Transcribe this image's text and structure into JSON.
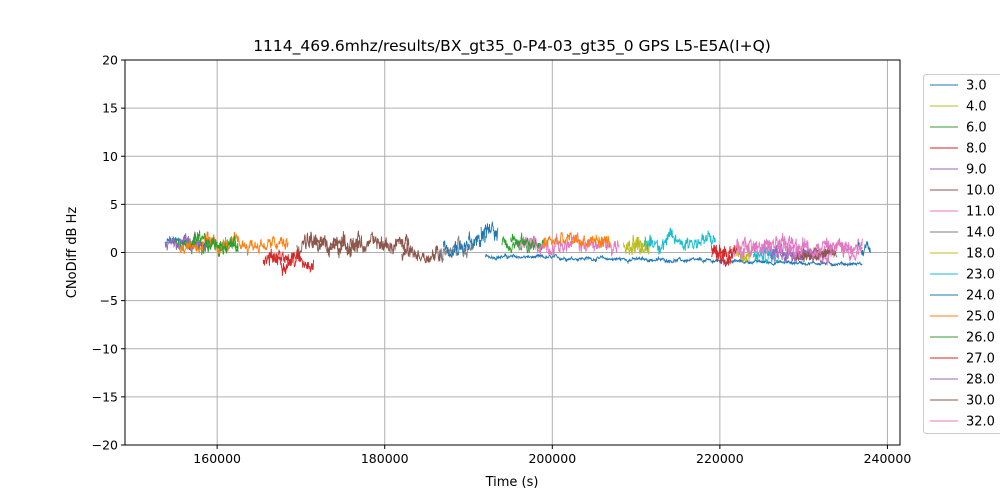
{
  "chart_data": {
    "type": "line",
    "title": "1114_469.6mhz/results/BX_gt35_0-P4-03_gt35_0 GPS L5-E5A(I+Q)",
    "xlabel": "Time (s)",
    "ylabel": "CNoDiff dB Hz",
    "xlim": [
      149000,
      241500
    ],
    "ylim": [
      -20,
      20
    ],
    "xticks": [
      160000,
      180000,
      200000,
      220000,
      240000
    ],
    "xtick_labels": [
      "160000",
      "180000",
      "200000",
      "220000",
      "240000"
    ],
    "yticks": [
      -20,
      -15,
      -10,
      -5,
      0,
      5,
      10,
      15,
      20
    ],
    "ytick_labels": [
      "−20",
      "−15",
      "−10",
      "−5",
      "0",
      "5",
      "10",
      "15",
      "20"
    ],
    "grid": true,
    "legend_position": "right, outside plot",
    "series": [
      {
        "name": "3.0",
        "color": "#1f77b4",
        "segments": [
          {
            "x0": 154000,
            "x1": 160000,
            "mean": 1.0,
            "amp": 0.6
          },
          {
            "x0": 190000,
            "x1": 192000,
            "mean": 1.2,
            "amp": 1.0
          },
          {
            "x0": 192000,
            "x1": 237000,
            "mean": -0.4,
            "amp": 0.2,
            "trend": -0.8
          }
        ]
      },
      {
        "name": "4.0",
        "color": "#bcbd22",
        "segments": [
          {
            "x0": 208500,
            "x1": 211500,
            "mean": 0.6,
            "amp": 0.8
          },
          {
            "x0": 222000,
            "x1": 224000,
            "mean": -0.2,
            "amp": 0.9
          }
        ]
      },
      {
        "name": "6.0",
        "color": "#2ca02c",
        "segments": [
          {
            "x0": 154500,
            "x1": 162500,
            "mean": 0.4,
            "amp": 0.8
          },
          {
            "x0": 195000,
            "x1": 199000,
            "mean": 1.0,
            "amp": 0.8
          }
        ]
      },
      {
        "name": "8.0",
        "color": "#d62728",
        "segments": [
          {
            "x0": 165500,
            "x1": 171500,
            "mean": -0.8,
            "amp": 0.8
          },
          {
            "x0": 219000,
            "x1": 221500,
            "mean": 0.0,
            "amp": 1.0
          }
        ]
      },
      {
        "name": "9.0",
        "color": "#9467bd",
        "segments": [
          {
            "x0": 153800,
            "x1": 159000,
            "mean": 1.0,
            "amp": 0.7
          },
          {
            "x0": 225000,
            "x1": 233000,
            "mean": 0.0,
            "amp": 0.7
          }
        ]
      },
      {
        "name": "10.0",
        "color": "#8c564b",
        "segments": [
          {
            "x0": 169500,
            "x1": 177000,
            "mean": 0.9,
            "amp": 0.9
          },
          {
            "x0": 182000,
            "x1": 187000,
            "mean": -0.2,
            "amp": 0.9
          },
          {
            "x0": 229000,
            "x1": 233500,
            "mean": 0.0,
            "amp": 0.7
          }
        ]
      },
      {
        "name": "11.0",
        "color": "#e377c2",
        "segments": [
          {
            "x0": 196000,
            "x1": 208000,
            "mean": 0.8,
            "amp": 0.9
          },
          {
            "x0": 221500,
            "x1": 237000,
            "mean": 0.4,
            "amp": 0.9
          }
        ]
      },
      {
        "name": "14.0",
        "color": "#7f7f7f",
        "segments": [
          {
            "x0": 186500,
            "x1": 190500,
            "mean": 0.0,
            "amp": 1.0
          }
        ]
      },
      {
        "name": "18.0",
        "color": "#bcbd22",
        "segments": [
          {
            "x0": 209000,
            "x1": 212000,
            "mean": 0.8,
            "amp": 0.8
          }
        ]
      },
      {
        "name": "23.0",
        "color": "#17becf",
        "segments": [
          {
            "x0": 211000,
            "x1": 219500,
            "mean": 1.2,
            "amp": 0.9
          },
          {
            "x0": 224000,
            "x1": 227000,
            "mean": -0.4,
            "amp": 0.8
          }
        ]
      },
      {
        "name": "24.0",
        "color": "#1f77b4",
        "segments": [
          {
            "x0": 187000,
            "x1": 190000,
            "mean": 0.8,
            "amp": 0.8
          },
          {
            "x0": 191500,
            "x1": 193500,
            "mean": 2.0,
            "amp": 1.2
          },
          {
            "x0": 236500,
            "x1": 238000,
            "mean": 0.6,
            "amp": 0.7
          }
        ]
      },
      {
        "name": "25.0",
        "color": "#ff7f0e",
        "segments": [
          {
            "x0": 155500,
            "x1": 168500,
            "mean": 0.8,
            "amp": 0.8
          },
          {
            "x0": 199000,
            "x1": 207000,
            "mean": 1.2,
            "amp": 0.8
          }
        ]
      },
      {
        "name": "26.0",
        "color": "#2ca02c",
        "segments": [
          {
            "x0": 157000,
            "x1": 162500,
            "mean": 0.9,
            "amp": 0.8
          },
          {
            "x0": 194000,
            "x1": 198000,
            "mean": 1.0,
            "amp": 0.7
          }
        ]
      },
      {
        "name": "27.0",
        "color": "#d62728",
        "segments": [
          {
            "x0": 166000,
            "x1": 170000,
            "mean": -0.5,
            "amp": 0.8
          },
          {
            "x0": 219000,
            "x1": 222000,
            "mean": -0.3,
            "amp": 1.0
          }
        ]
      },
      {
        "name": "28.0",
        "color": "#9467bd",
        "segments": [
          {
            "x0": 226000,
            "x1": 231000,
            "mean": 0.0,
            "amp": 0.6
          }
        ]
      },
      {
        "name": "30.0",
        "color": "#8c564b",
        "segments": [
          {
            "x0": 171000,
            "x1": 183000,
            "mean": 0.8,
            "amp": 0.9
          },
          {
            "x0": 229000,
            "x1": 234000,
            "mean": -0.2,
            "amp": 0.6
          }
        ]
      },
      {
        "name": "32.0",
        "color": "#e377c2",
        "segments": [
          {
            "x0": 222000,
            "x1": 237000,
            "mean": 0.6,
            "amp": 0.9
          }
        ]
      }
    ]
  }
}
